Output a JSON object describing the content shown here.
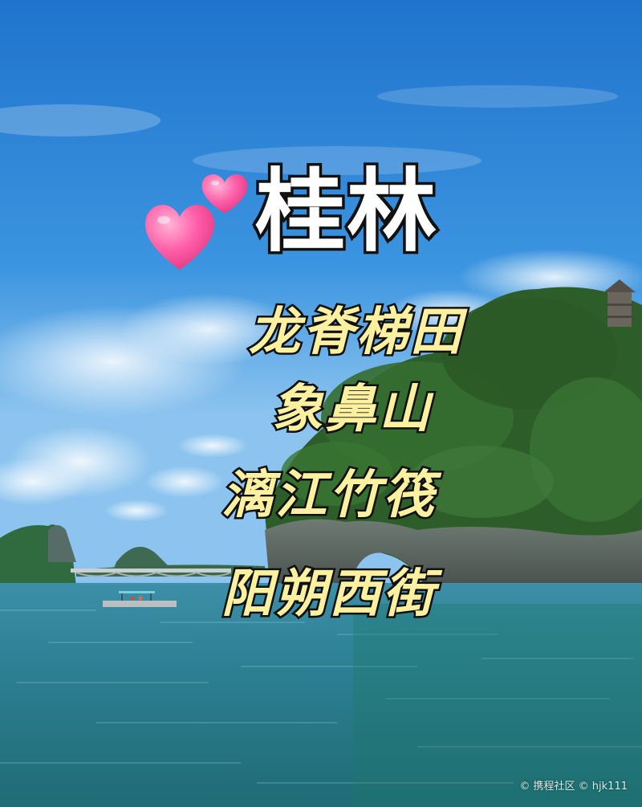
{
  "title": "桂林",
  "subtitles": [
    "龙脊梯田",
    "象鼻山",
    "漓江竹筏",
    "阳朔西街"
  ],
  "watermark": "© 携程社区 © hjk111",
  "icons": {
    "hearts": "two-pink-hearts-icon"
  },
  "colors": {
    "title_fill": "#ffffff",
    "subtitle_fill": "#fdf1a0",
    "outline": "#111111",
    "heart": "#ff5fa8"
  }
}
